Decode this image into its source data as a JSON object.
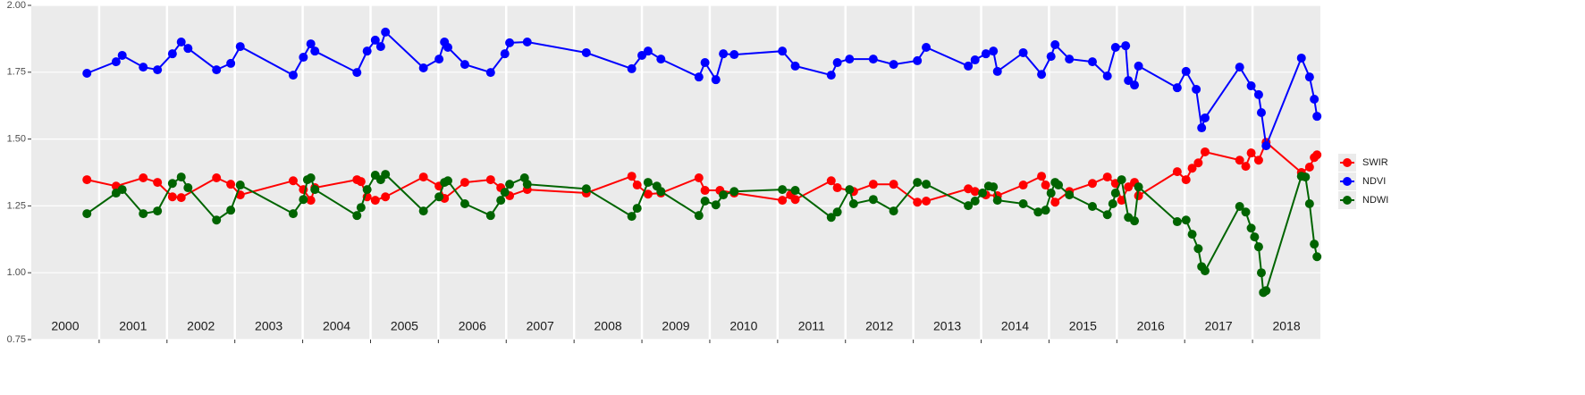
{
  "chart_data": {
    "type": "line",
    "markers": true,
    "grid": true,
    "legend": "right",
    "xlim": [
      2000,
      2019
    ],
    "xticks": [
      2001,
      2002,
      2003,
      2004,
      2005,
      2006,
      2007,
      2008,
      2009,
      2010,
      2011,
      2012,
      2013,
      2014,
      2015,
      2016,
      2017,
      2018
    ],
    "year_labels": [
      2000,
      2001,
      2002,
      2003,
      2004,
      2005,
      2006,
      2007,
      2008,
      2009,
      2010,
      2011,
      2012,
      2013,
      2014,
      2015,
      2016,
      2017,
      2018
    ],
    "ylim": [
      0.75,
      2.0
    ],
    "yticks": [
      {
        "value": 0.75,
        "label": "0.75"
      },
      {
        "value": 1,
        "label": "1.00"
      },
      {
        "value": 1.25,
        "label": "1.25"
      },
      {
        "value": 1.5,
        "label": "1.50"
      },
      {
        "value": 1.75,
        "label": "1.75"
      },
      {
        "value": 2,
        "label": "2.00"
      }
    ],
    "series": [
      {
        "name": "SWIR",
        "color": "#ff0000",
        "x": [
          2000.82,
          2001.25,
          2001.65,
          2001.86,
          2002.08,
          2002.21,
          2002.73,
          2002.94,
          2003.08,
          2003.86,
          2004.01,
          2004.12,
          2004.18,
          2004.8,
          2004.86,
          2004.95,
          2005.07,
          2005.22,
          2005.78,
          2006.01,
          2006.09,
          2006.39,
          2006.77,
          2006.92,
          2007.05,
          2007.31,
          2008.18,
          2008.85,
          2008.93,
          2009.09,
          2009.28,
          2009.84,
          2009.93,
          2010.15,
          2010.36,
          2011.07,
          2011.19,
          2011.26,
          2011.79,
          2011.88,
          2012.12,
          2012.41,
          2012.71,
          2013.06,
          2013.19,
          2013.81,
          2013.91,
          2014.07,
          2014.24,
          2014.62,
          2014.89,
          2014.95,
          2015.09,
          2015.3,
          2015.64,
          2015.86,
          2015.98,
          2016.07,
          2016.17,
          2016.26,
          2016.32,
          2016.89,
          2017.02,
          2017.11,
          2017.2,
          2017.3,
          2017.81,
          2017.9,
          2017.98,
          2018.09,
          2018.2,
          2018.72,
          2018.84,
          2018.91,
          2018.95
        ],
        "values": [
          1.348,
          1.324,
          1.355,
          1.338,
          1.284,
          1.281,
          1.355,
          1.331,
          1.291,
          1.344,
          1.311,
          1.271,
          1.318,
          1.348,
          1.341,
          1.284,
          1.271,
          1.284,
          1.358,
          1.324,
          1.278,
          1.338,
          1.348,
          1.318,
          1.288,
          1.311,
          1.298,
          1.361,
          1.328,
          1.294,
          1.298,
          1.355,
          1.308,
          1.308,
          1.298,
          1.271,
          1.291,
          1.274,
          1.344,
          1.318,
          1.304,
          1.331,
          1.331,
          1.264,
          1.268,
          1.314,
          1.304,
          1.291,
          1.288,
          1.328,
          1.361,
          1.328,
          1.264,
          1.304,
          1.334,
          1.358,
          1.334,
          1.271,
          1.321,
          1.338,
          1.288,
          1.378,
          1.348,
          1.391,
          1.411,
          1.452,
          1.421,
          1.398,
          1.448,
          1.421,
          1.488,
          1.375,
          1.395,
          1.431,
          1.441
        ]
      },
      {
        "name": "NDVI",
        "color": "#0000ff",
        "x": [
          2000.82,
          2001.25,
          2001.34,
          2001.65,
          2001.86,
          2002.08,
          2002.21,
          2002.31,
          2002.73,
          2002.94,
          2003.08,
          2003.86,
          2004.01,
          2004.12,
          2004.18,
          2004.8,
          2004.95,
          2005.07,
          2005.15,
          2005.22,
          2005.78,
          2006.01,
          2006.09,
          2006.14,
          2006.39,
          2006.77,
          2006.98,
          2007.05,
          2007.31,
          2008.18,
          2008.85,
          2009.0,
          2009.09,
          2009.28,
          2009.84,
          2009.93,
          2010.09,
          2010.2,
          2010.36,
          2011.07,
          2011.26,
          2011.79,
          2011.88,
          2012.06,
          2012.41,
          2012.71,
          2013.06,
          2013.19,
          2013.81,
          2013.91,
          2014.07,
          2014.18,
          2014.24,
          2014.62,
          2014.89,
          2015.03,
          2015.09,
          2015.3,
          2015.64,
          2015.86,
          2015.98,
          2016.13,
          2016.17,
          2016.26,
          2016.32,
          2016.89,
          2017.02,
          2017.17,
          2017.25,
          2017.3,
          2017.81,
          2017.98,
          2018.09,
          2018.13,
          2018.2,
          2018.72,
          2018.84,
          2018.91,
          2018.95
        ],
        "values": [
          1.746,
          1.789,
          1.813,
          1.769,
          1.759,
          1.819,
          1.863,
          1.839,
          1.759,
          1.783,
          1.846,
          1.739,
          1.806,
          1.856,
          1.829,
          1.749,
          1.829,
          1.87,
          1.846,
          1.9,
          1.766,
          1.799,
          1.863,
          1.843,
          1.779,
          1.749,
          1.819,
          1.86,
          1.863,
          1.823,
          1.763,
          1.813,
          1.829,
          1.799,
          1.732,
          1.786,
          1.722,
          1.819,
          1.816,
          1.829,
          1.773,
          1.739,
          1.786,
          1.799,
          1.799,
          1.779,
          1.793,
          1.843,
          1.773,
          1.796,
          1.819,
          1.829,
          1.753,
          1.823,
          1.742,
          1.809,
          1.853,
          1.799,
          1.789,
          1.736,
          1.843,
          1.849,
          1.719,
          1.702,
          1.773,
          1.692,
          1.753,
          1.686,
          1.542,
          1.579,
          1.769,
          1.699,
          1.666,
          1.599,
          1.475,
          1.803,
          1.732,
          1.649,
          1.585
        ]
      },
      {
        "name": "NDWI",
        "color": "#006400",
        "x": [
          2000.82,
          2001.25,
          2001.34,
          2001.65,
          2001.86,
          2002.08,
          2002.21,
          2002.31,
          2002.73,
          2002.94,
          2003.08,
          2003.86,
          2004.01,
          2004.07,
          2004.12,
          2004.18,
          2004.8,
          2004.86,
          2004.95,
          2005.07,
          2005.15,
          2005.22,
          2005.78,
          2006.01,
          2006.09,
          2006.14,
          2006.39,
          2006.77,
          2006.92,
          2006.98,
          2007.05,
          2007.27,
          2007.31,
          2008.18,
          2008.85,
          2008.93,
          2009.09,
          2009.22,
          2009.28,
          2009.84,
          2009.93,
          2010.09,
          2010.2,
          2010.36,
          2011.07,
          2011.26,
          2011.79,
          2011.88,
          2012.06,
          2012.12,
          2012.41,
          2012.71,
          2013.06,
          2013.19,
          2013.81,
          2013.91,
          2014.02,
          2014.11,
          2014.18,
          2014.24,
          2014.62,
          2014.84,
          2014.95,
          2015.03,
          2015.09,
          2015.14,
          2015.3,
          2015.64,
          2015.86,
          2015.94,
          2015.98,
          2016.07,
          2016.17,
          2016.26,
          2016.32,
          2016.89,
          2017.02,
          2017.11,
          2017.2,
          2017.25,
          2017.3,
          2017.81,
          2017.9,
          2017.98,
          2018.03,
          2018.09,
          2018.13,
          2018.16,
          2018.2,
          2018.72,
          2018.78,
          2018.84,
          2018.91,
          2018.95
        ],
        "values": [
          1.221,
          1.298,
          1.311,
          1.221,
          1.231,
          1.334,
          1.358,
          1.318,
          1.197,
          1.234,
          1.328,
          1.221,
          1.274,
          1.348,
          1.355,
          1.311,
          1.214,
          1.244,
          1.311,
          1.365,
          1.348,
          1.368,
          1.231,
          1.284,
          1.338,
          1.344,
          1.258,
          1.214,
          1.271,
          1.301,
          1.331,
          1.355,
          1.331,
          1.314,
          1.211,
          1.241,
          1.338,
          1.324,
          1.304,
          1.214,
          1.268,
          1.254,
          1.291,
          1.304,
          1.311,
          1.308,
          1.207,
          1.227,
          1.311,
          1.258,
          1.274,
          1.231,
          1.338,
          1.331,
          1.251,
          1.268,
          1.298,
          1.324,
          1.321,
          1.271,
          1.258,
          1.227,
          1.234,
          1.298,
          1.338,
          1.328,
          1.291,
          1.248,
          1.217,
          1.258,
          1.298,
          1.348,
          1.207,
          1.194,
          1.321,
          1.191,
          1.197,
          1.144,
          1.09,
          1.023,
          1.007,
          1.248,
          1.227,
          1.167,
          1.134,
          1.097,
          1.0,
          0.926,
          0.933,
          1.361,
          1.358,
          1.258,
          1.107,
          1.06
        ]
      }
    ]
  }
}
